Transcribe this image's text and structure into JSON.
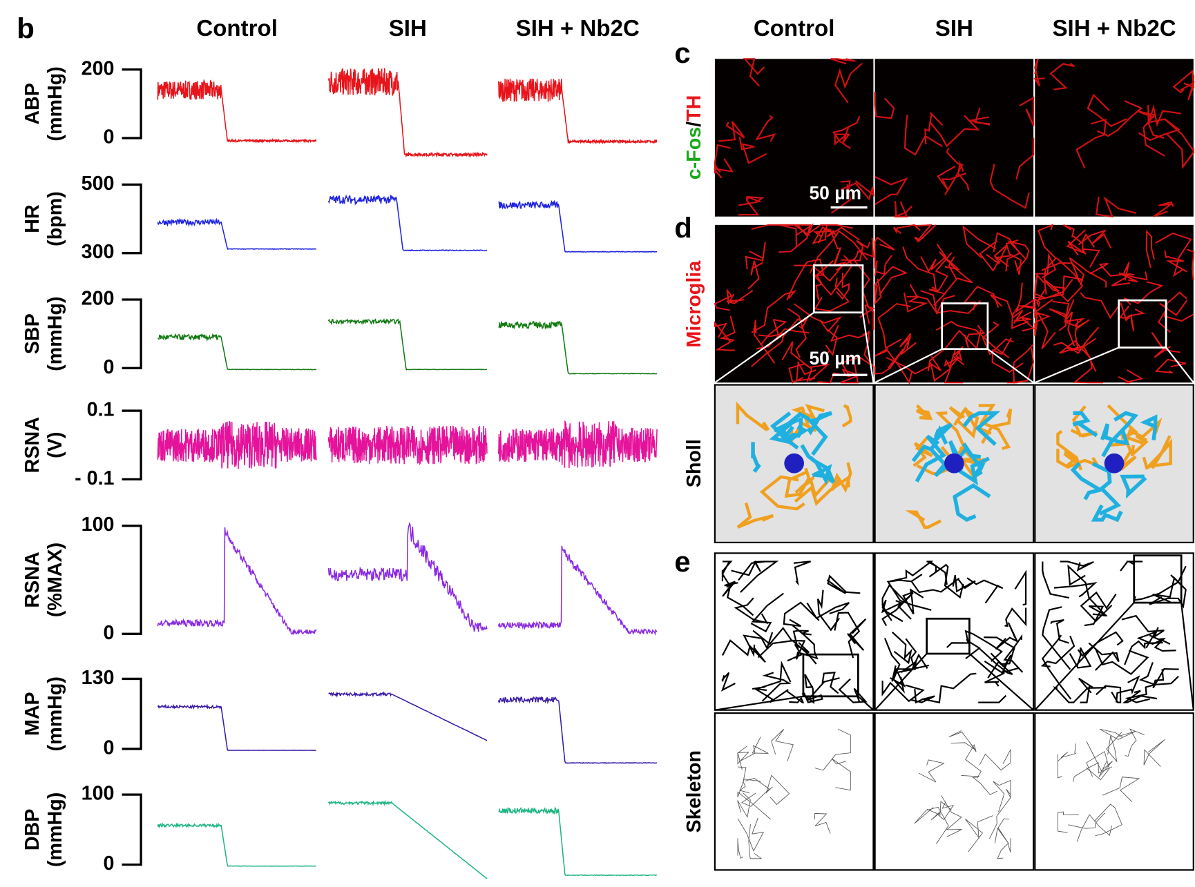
{
  "panel_b": {
    "label": "b",
    "columns": [
      "Control",
      "SIH",
      "SIH + Nb2C"
    ],
    "rows": [
      {
        "label": "ABP",
        "unit": "(mmHg)",
        "ticks": [
          "200",
          "0"
        ],
        "color": "#e8141b"
      },
      {
        "label": "HR",
        "unit": "(bpm)",
        "ticks": [
          "500",
          "300"
        ],
        "color": "#1f24e0"
      },
      {
        "label": "SBP",
        "unit": "(mmHg)",
        "ticks": [
          "200",
          "0"
        ],
        "color": "#137a13"
      },
      {
        "label": "RSNA",
        "unit": "(V)",
        "ticks": [
          "0.1",
          "- 0.1"
        ],
        "color": "#e5139b"
      },
      {
        "label": "RSNA",
        "unit": "(%MAX)",
        "ticks": [
          "100",
          "0"
        ],
        "color": "#8a2be2"
      },
      {
        "label": "MAP",
        "unit": "(mmHg)",
        "ticks": [
          "130",
          "0"
        ],
        "color": "#3a1aa8"
      },
      {
        "label": "DBP",
        "unit": "(mmHg)",
        "ticks": [
          "100",
          "0"
        ],
        "color": "#1fb584"
      }
    ]
  },
  "panel_c": {
    "label": "c",
    "columns": [
      "Control",
      "SIH",
      "SIH + Nb2C"
    ],
    "stain_green": "c-Fos",
    "separator": "/",
    "stain_red": "TH",
    "scale_bar": "50 µm"
  },
  "panel_d": {
    "label": "d",
    "row_label": "Microglia",
    "sholl_label": "Sholl",
    "scale_bar": "50 µm"
  },
  "panel_e": {
    "label": "e",
    "row_label": "Skeleton"
  }
}
